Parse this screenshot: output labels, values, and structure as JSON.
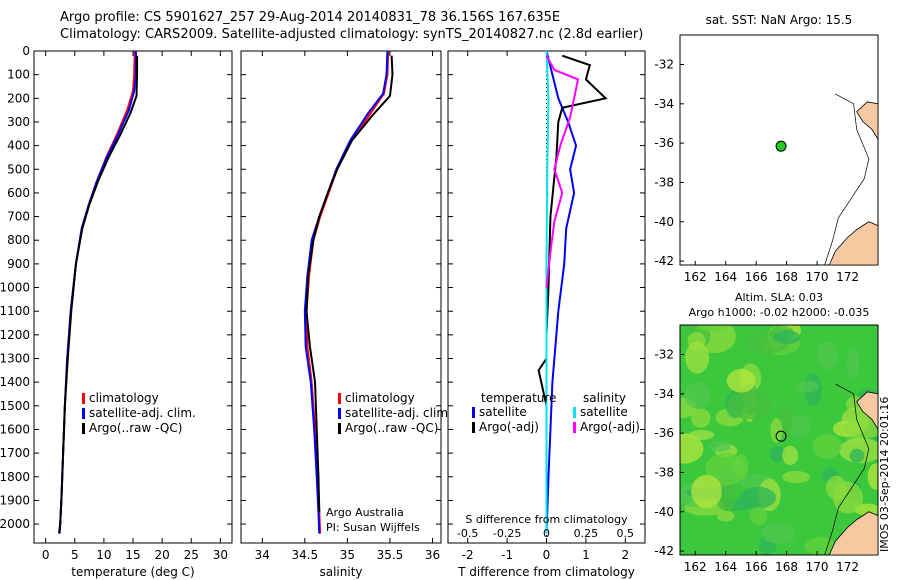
{
  "header": {
    "line1": "Argo profile: CS 5901627_257 29-Aug-2014 20140831_78 36.156S 167.635E",
    "line2": "Climatology: CARS2009. Satellite-adjusted climatology: synTS_20140827.nc (2.8d earlier)"
  },
  "stamp": "IMOS 03-Sep-2014 20:01:16",
  "colors": {
    "climatology": "#ff0000",
    "satellite": "#0000ff",
    "argo": "#000000",
    "sal_satellite": "#00e5ee",
    "sal_argo": "#ff00ff",
    "land": "#f8c8a0",
    "ocean_blank": "#ffffff"
  },
  "chart_data": [
    {
      "id": "temperature",
      "type": "line",
      "xlabel": "temperature (deg C)",
      "ylabel": "",
      "xlim": [
        -2,
        32
      ],
      "ylim": [
        2080,
        0
      ],
      "xticks": [
        0,
        5,
        10,
        15,
        20,
        25,
        30
      ],
      "yticks": [
        0,
        100,
        200,
        300,
        400,
        500,
        600,
        700,
        800,
        900,
        1000,
        1100,
        1200,
        1300,
        1400,
        1500,
        1600,
        1700,
        1800,
        1900,
        2000
      ],
      "legend": {
        "position": "center-right",
        "entries": [
          "climatology",
          "satellite-adj. clim.",
          "Argo(..raw -QC)"
        ]
      },
      "series": [
        {
          "name": "climatology",
          "color": "#ff0000",
          "x": [
            15.3,
            15.2,
            15.0,
            14.0,
            12.3,
            10.4,
            8.8,
            7.4,
            6.2,
            5.2,
            4.3,
            3.7,
            3.3,
            3.0,
            2.7,
            2.5,
            2.3
          ],
          "y": [
            0,
            100,
            170,
            250,
            350,
            450,
            550,
            650,
            750,
            900,
            1100,
            1300,
            1500,
            1700,
            1900,
            2000,
            2040
          ]
        },
        {
          "name": "satellite-adj. clim.",
          "color": "#0000ff",
          "x": [
            15.5,
            15.5,
            15.2,
            14.3,
            12.5,
            10.5,
            8.8,
            7.4,
            6.2,
            5.2,
            4.3,
            3.7,
            3.3,
            3.0,
            2.7,
            2.5,
            2.3
          ],
          "y": [
            0,
            100,
            170,
            250,
            350,
            450,
            550,
            650,
            750,
            900,
            1100,
            1300,
            1500,
            1700,
            1900,
            2000,
            2040
          ]
        },
        {
          "name": "Argo(..raw -QC)",
          "color": "#000000",
          "x": [
            15.7,
            15.7,
            15.6,
            14.6,
            12.9,
            10.8,
            9.0,
            7.5,
            6.3,
            5.2,
            4.4,
            3.8,
            3.3,
            3.0,
            2.7,
            2.5,
            2.4
          ],
          "y": [
            20,
            100,
            190,
            260,
            350,
            450,
            550,
            650,
            750,
            900,
            1100,
            1300,
            1500,
            1700,
            1900,
            2000,
            2040
          ]
        }
      ]
    },
    {
      "id": "salinity",
      "type": "line",
      "xlabel": "salinity",
      "ylabel": "",
      "xlim": [
        33.75,
        36.1
      ],
      "ylim": [
        2080,
        0
      ],
      "xticks": [
        34,
        34.5,
        35,
        35.5,
        36
      ],
      "legend": {
        "position": "center-right",
        "entries": [
          "climatology",
          "satellite-adj. clim.",
          "Argo(..raw -QC)"
        ]
      },
      "annotations": [
        "Argo Australia",
        "PI: Susan Wijffels"
      ],
      "series": [
        {
          "name": "climatology",
          "color": "#ff0000",
          "x": [
            35.48,
            35.47,
            35.43,
            35.28,
            35.05,
            34.88,
            34.78,
            34.68,
            34.6,
            34.55,
            34.52,
            34.53,
            34.58,
            34.62,
            34.65,
            34.67,
            34.68
          ],
          "y": [
            0,
            100,
            180,
            260,
            380,
            500,
            600,
            700,
            800,
            950,
            1100,
            1250,
            1400,
            1600,
            1800,
            1950,
            2040
          ]
        },
        {
          "name": "satellite-adj. clim.",
          "color": "#0000ff",
          "x": [
            35.47,
            35.46,
            35.42,
            35.25,
            35.03,
            34.87,
            34.77,
            34.67,
            34.58,
            34.53,
            34.5,
            34.51,
            34.57,
            34.61,
            34.64,
            34.66,
            34.67
          ],
          "y": [
            0,
            100,
            180,
            260,
            380,
            500,
            600,
            700,
            800,
            950,
            1100,
            1250,
            1400,
            1600,
            1800,
            1950,
            2040
          ]
        },
        {
          "name": "Argo(..raw -QC)",
          "color": "#000000",
          "x": [
            35.52,
            35.53,
            35.5,
            35.3,
            35.05,
            34.88,
            34.77,
            34.67,
            34.6,
            34.54,
            34.52,
            34.56,
            34.62,
            34.64,
            34.66,
            34.67
          ],
          "y": [
            20,
            100,
            190,
            270,
            380,
            500,
            600,
            700,
            800,
            950,
            1100,
            1250,
            1400,
            1600,
            1800,
            1950
          ]
        }
      ]
    },
    {
      "id": "difference",
      "type": "line",
      "xlabel": "T difference from climatology",
      "xlabel2": "S difference from climatology",
      "xlim": [
        -2.5,
        2.5
      ],
      "ylim": [
        2080,
        0
      ],
      "xticks": [
        -2,
        -1,
        0,
        1,
        2
      ],
      "xticklabels": [
        "-2",
        "-1",
        "0",
        "1",
        "2"
      ],
      "x2ticklabels": [
        "-0.5",
        "-0.25",
        "0",
        "0.25",
        "0.5"
      ],
      "legend": {
        "position": "center",
        "groups": [
          "temperature",
          "salinity"
        ],
        "entries": [
          "satellite",
          "Argo(-adj)",
          "satellite",
          "Argo(-adj)"
        ]
      },
      "series": [
        {
          "name": "satellite",
          "group": "temperature",
          "color": "#0000ff",
          "x": [
            0.0,
            0.15,
            0.3,
            0.55,
            0.75,
            0.6,
            0.7,
            0.5,
            0.45,
            0.3,
            0.15,
            0.05,
            0.0
          ],
          "y": [
            0,
            100,
            200,
            300,
            400,
            500,
            600,
            750,
            900,
            1100,
            1400,
            1800,
            2040
          ]
        },
        {
          "name": "Argo(-adj)",
          "group": "temperature",
          "color": "#000000",
          "x": [
            0.4,
            1.1,
            1.0,
            1.5,
            0.4,
            0.3,
            0.25,
            0.1,
            0.05,
            0.0,
            0.0,
            -0.2,
            0.0,
            0.0
          ],
          "y": [
            20,
            60,
            120,
            200,
            240,
            300,
            450,
            700,
            1000,
            1200,
            1300,
            1350,
            1500,
            2040
          ]
        },
        {
          "name": "satellite",
          "group": "salinity",
          "color": "#00e5ee",
          "x": [
            0.0,
            0.05,
            0.02,
            0.0,
            0.0,
            0.0,
            0.0
          ],
          "y": [
            0,
            200,
            500,
            900,
            1200,
            1600,
            2040
          ]
        },
        {
          "name": "Argo(-adj)",
          "group": "salinity",
          "color": "#ff00ff",
          "x": [
            0.0,
            0.2,
            0.8,
            0.7,
            0.6,
            0.35,
            0.2,
            0.4,
            0.2,
            0.1,
            0.0
          ],
          "y": [
            20,
            80,
            120,
            200,
            280,
            400,
            500,
            600,
            720,
            850,
            1000
          ]
        }
      ]
    },
    {
      "id": "map-sst",
      "type": "scatter",
      "title": "sat. SST: NaN Argo: 15.5",
      "xlim": [
        161,
        174
      ],
      "ylim": [
        -42.2,
        -30.5
      ],
      "xticks": [
        162,
        164,
        166,
        168,
        170,
        172
      ],
      "yticks": [
        -32,
        -34,
        -36,
        -38,
        -40,
        -42
      ],
      "points": [
        {
          "lon": 167.635,
          "lat": -36.156,
          "color": "#22cc22"
        }
      ]
    },
    {
      "id": "map-sla",
      "type": "heatmap",
      "title": "Altim. SLA: 0.03",
      "subtitle": "Argo h1000: -0.02 h2000: -0.035",
      "xlim": [
        161,
        174
      ],
      "ylim": [
        -42.2,
        -30.5
      ],
      "xticks": [
        162,
        164,
        166,
        168,
        170,
        172
      ],
      "yticks": [
        -32,
        -34,
        -36,
        -38,
        -40,
        -42
      ],
      "colormap": "green-yellow",
      "points": [
        {
          "lon": 167.635,
          "lat": -36.156
        }
      ]
    }
  ]
}
